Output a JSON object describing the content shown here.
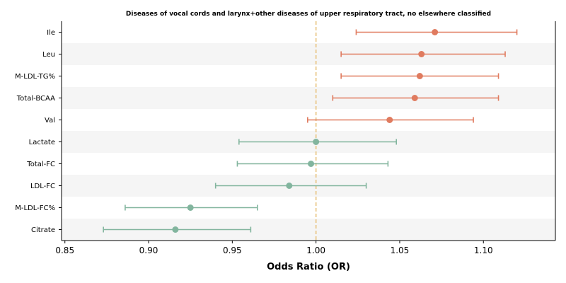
{
  "chart_data": {
    "type": "scatter",
    "title": "Diseases of vocal cords and larynx+other diseases of upper respiratory tract, no elsewhere classified",
    "xlabel": "Odds Ratio (OR)",
    "ylabel": "",
    "xlim": [
      0.848,
      1.143
    ],
    "xticks": [
      0.85,
      0.9,
      0.95,
      1.0,
      1.05,
      1.1
    ],
    "xtick_labels": [
      "0.85",
      "0.90",
      "0.95",
      "1.00",
      "1.05",
      "1.10"
    ],
    "reference_line": 1.0,
    "grid": false,
    "band_color": "#f5f5f5",
    "ref_line_color": "#e8c37e",
    "colors": {
      "risk": "#e07b5f",
      "protective": "#82b59e"
    },
    "series": [
      {
        "label": "Ile",
        "or": 1.071,
        "lower": 1.024,
        "upper": 1.12,
        "group": "risk"
      },
      {
        "label": "Leu",
        "or": 1.063,
        "lower": 1.015,
        "upper": 1.113,
        "group": "risk"
      },
      {
        "label": "M-LDL-TG%",
        "or": 1.062,
        "lower": 1.015,
        "upper": 1.109,
        "group": "risk"
      },
      {
        "label": "Total-BCAA",
        "or": 1.059,
        "lower": 1.01,
        "upper": 1.109,
        "group": "risk"
      },
      {
        "label": "Val",
        "or": 1.044,
        "lower": 0.995,
        "upper": 1.094,
        "group": "risk"
      },
      {
        "label": "Lactate",
        "or": 1.0,
        "lower": 0.954,
        "upper": 1.048,
        "group": "protective"
      },
      {
        "label": "Total-FC",
        "or": 0.997,
        "lower": 0.953,
        "upper": 1.043,
        "group": "protective"
      },
      {
        "label": "LDL-FC",
        "or": 0.984,
        "lower": 0.94,
        "upper": 1.03,
        "group": "protective"
      },
      {
        "label": "M-LDL-FC%",
        "or": 0.925,
        "lower": 0.886,
        "upper": 0.965,
        "group": "protective"
      },
      {
        "label": "Citrate",
        "or": 0.916,
        "lower": 0.873,
        "upper": 0.961,
        "group": "protective"
      }
    ]
  }
}
